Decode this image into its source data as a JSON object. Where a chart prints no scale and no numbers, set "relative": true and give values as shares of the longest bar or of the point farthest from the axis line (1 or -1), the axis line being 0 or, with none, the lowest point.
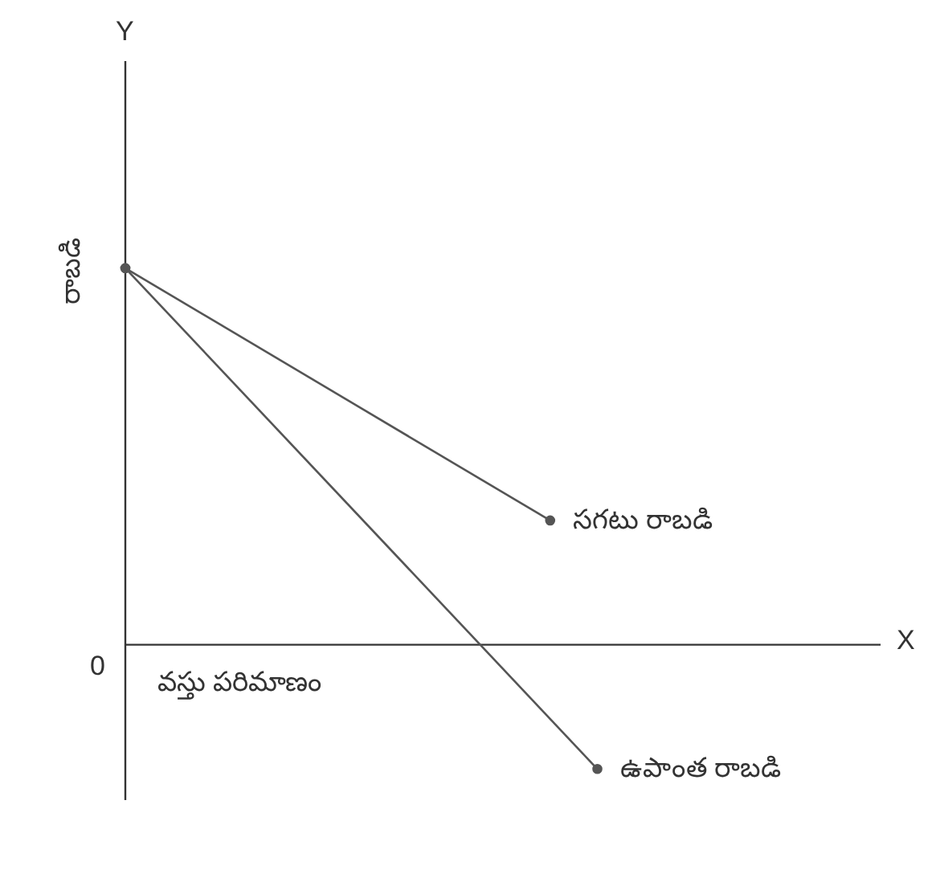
{
  "chart_data": {
    "type": "line",
    "relative": true,
    "xlabel": "వస్తు పరిమాణం",
    "ylabel": "రాబడి",
    "categories": [
      null,
      null,
      null,
      null,
      null,
      null,
      null,
      null,
      null,
      null,
      null,
      null,
      null,
      null,
      null,
      null,
      null
    ],
    "series": [
      {
        "name": "సగటు రాబడి",
        "color": "#555555",
        "values": [
          1,
          null,
          null,
          null,
          null,
          null,
          null,
          null,
          null,
          0.33,
          null,
          null,
          null,
          null,
          null,
          null,
          null
        ]
      },
      {
        "name": "ఉపాంత రాబడి",
        "color": "#555555",
        "values": [
          1,
          null,
          null,
          null,
          null,
          null,
          null,
          null,
          null,
          null,
          -0.33,
          null,
          null,
          null,
          null,
          null,
          null
        ]
      }
    ],
    "annotations": [
      "Y",
      "X",
      "0"
    ],
    "marker": "circle",
    "line_style": "solid",
    "grid": false,
    "legend": false
  }
}
